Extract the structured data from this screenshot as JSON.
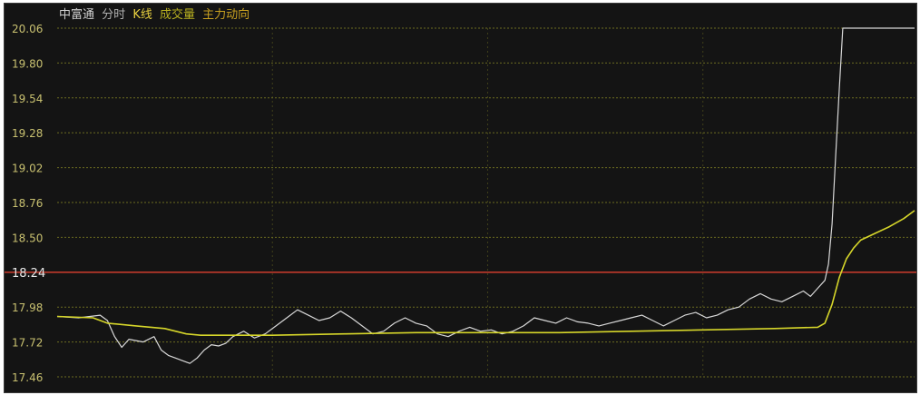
{
  "legend": {
    "stock_name": "中富通",
    "tab_minute": "分时",
    "tab_kline": "K线",
    "tab_third": "成交量",
    "tab_fourth": "主力动向"
  },
  "colors": {
    "background": "#141414",
    "grid": "#6b6b20",
    "price_line": "#d8d8d8",
    "avg_line": "#d6d62a",
    "prev_close_line": "#c0392b",
    "axis_text": "#c8c070",
    "axis_text_emph": "#e8e8e8",
    "legend_name": "#d0d0d0",
    "legend_minute": "#b0b0b0",
    "legend_kline": "#e8d040",
    "legend_third": "#b8b020",
    "legend_fourth": "#c8a020"
  },
  "chart_data": {
    "type": "line",
    "y_ticks": [
      "20.06",
      "19.80",
      "19.54",
      "19.28",
      "19.02",
      "18.76",
      "18.50",
      "18.24",
      "17.98",
      "17.72",
      "17.46"
    ],
    "prev_close": 18.24,
    "ylim": [
      17.46,
      20.06
    ],
    "x_count": 240,
    "grid": true,
    "series": [
      {
        "key": "price",
        "points": [
          [
            0,
            17.91
          ],
          [
            6,
            17.9
          ],
          [
            12,
            17.92
          ],
          [
            14,
            17.88
          ],
          [
            16,
            17.76
          ],
          [
            18,
            17.68
          ],
          [
            20,
            17.74
          ],
          [
            24,
            17.72
          ],
          [
            27,
            17.76
          ],
          [
            29,
            17.66
          ],
          [
            31,
            17.62
          ],
          [
            33,
            17.6
          ],
          [
            35,
            17.58
          ],
          [
            37,
            17.56
          ],
          [
            39,
            17.6
          ],
          [
            41,
            17.66
          ],
          [
            43,
            17.7
          ],
          [
            45,
            17.69
          ],
          [
            47,
            17.71
          ],
          [
            49,
            17.76
          ],
          [
            52,
            17.8
          ],
          [
            55,
            17.75
          ],
          [
            58,
            17.78
          ],
          [
            61,
            17.84
          ],
          [
            64,
            17.9
          ],
          [
            67,
            17.96
          ],
          [
            70,
            17.92
          ],
          [
            73,
            17.88
          ],
          [
            76,
            17.9
          ],
          [
            79,
            17.95
          ],
          [
            82,
            17.9
          ],
          [
            85,
            17.84
          ],
          [
            88,
            17.78
          ],
          [
            91,
            17.8
          ],
          [
            94,
            17.86
          ],
          [
            97,
            17.9
          ],
          [
            100,
            17.86
          ],
          [
            103,
            17.84
          ],
          [
            106,
            17.78
          ],
          [
            109,
            17.76
          ],
          [
            112,
            17.8
          ],
          [
            115,
            17.83
          ],
          [
            118,
            17.8
          ],
          [
            121,
            17.81
          ],
          [
            124,
            17.78
          ],
          [
            127,
            17.8
          ],
          [
            130,
            17.84
          ],
          [
            133,
            17.9
          ],
          [
            136,
            17.88
          ],
          [
            139,
            17.86
          ],
          [
            142,
            17.9
          ],
          [
            145,
            17.87
          ],
          [
            148,
            17.86
          ],
          [
            151,
            17.84
          ],
          [
            154,
            17.86
          ],
          [
            157,
            17.88
          ],
          [
            160,
            17.9
          ],
          [
            163,
            17.92
          ],
          [
            166,
            17.88
          ],
          [
            169,
            17.84
          ],
          [
            172,
            17.88
          ],
          [
            175,
            17.92
          ],
          [
            178,
            17.94
          ],
          [
            181,
            17.9
          ],
          [
            184,
            17.92
          ],
          [
            187,
            17.96
          ],
          [
            190,
            17.98
          ],
          [
            193,
            18.04
          ],
          [
            196,
            18.08
          ],
          [
            199,
            18.04
          ],
          [
            202,
            18.02
          ],
          [
            205,
            18.06
          ],
          [
            208,
            18.1
          ],
          [
            210,
            18.06
          ],
          [
            212,
            18.12
          ],
          [
            214,
            18.18
          ],
          [
            215,
            18.3
          ],
          [
            216,
            18.6
          ],
          [
            217,
            19.1
          ],
          [
            218,
            19.6
          ],
          [
            219,
            20.06
          ],
          [
            225,
            20.06
          ],
          [
            231,
            20.06
          ],
          [
            239,
            20.06
          ]
        ]
      },
      {
        "key": "average",
        "points": [
          [
            0,
            17.91
          ],
          [
            10,
            17.9
          ],
          [
            14,
            17.86
          ],
          [
            22,
            17.84
          ],
          [
            30,
            17.82
          ],
          [
            36,
            17.78
          ],
          [
            40,
            17.77
          ],
          [
            60,
            17.77
          ],
          [
            80,
            17.78
          ],
          [
            100,
            17.79
          ],
          [
            120,
            17.79
          ],
          [
            140,
            17.79
          ],
          [
            160,
            17.8
          ],
          [
            180,
            17.81
          ],
          [
            200,
            17.82
          ],
          [
            212,
            17.83
          ],
          [
            214,
            17.86
          ],
          [
            216,
            18.0
          ],
          [
            218,
            18.2
          ],
          [
            220,
            18.34
          ],
          [
            222,
            18.42
          ],
          [
            224,
            18.48
          ],
          [
            228,
            18.53
          ],
          [
            232,
            18.58
          ],
          [
            236,
            18.64
          ],
          [
            239,
            18.7
          ]
        ]
      }
    ]
  }
}
